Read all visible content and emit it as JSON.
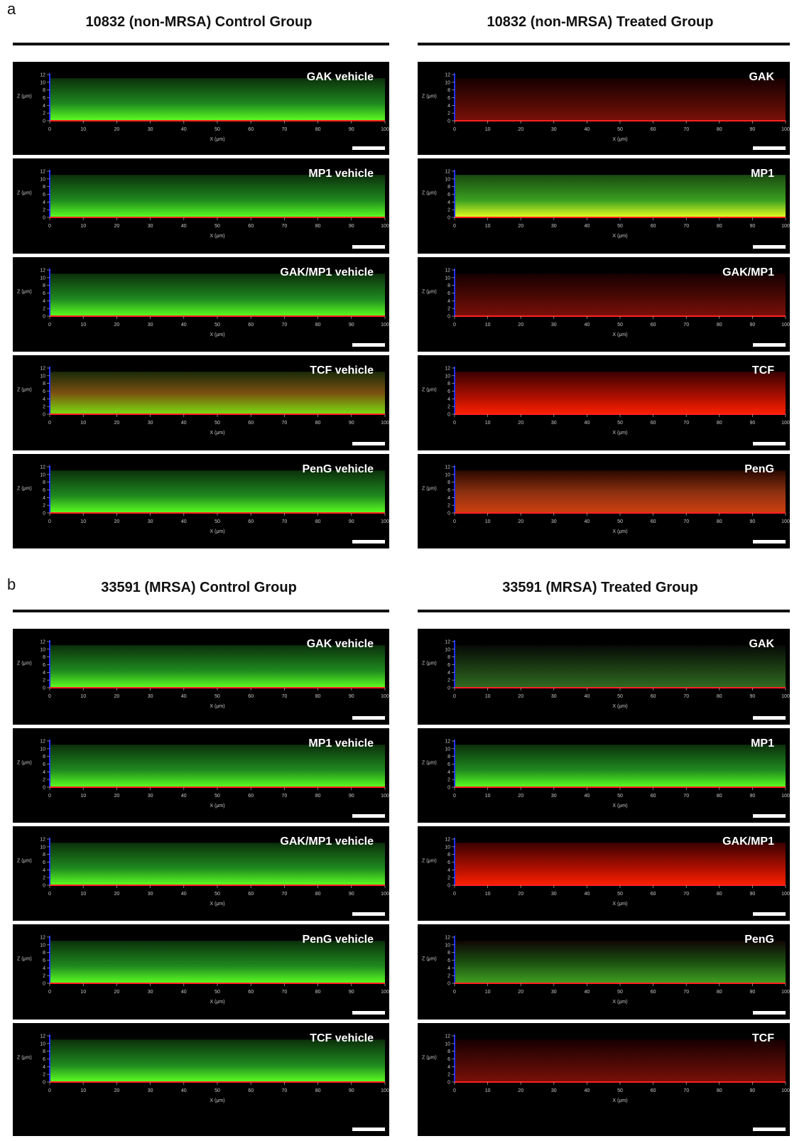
{
  "figure": {
    "sections": [
      {
        "label": "a",
        "groups": [
          {
            "title": "10832 (non-MRSA) Control Group",
            "panels": [
              "GAK vehicle",
              "MP1 vehicle",
              "GAK/MP1 vehicle",
              "TCF vehicle",
              "PenG vehicle"
            ]
          },
          {
            "title": "10832 (non-MRSA) Treated Group",
            "panels": [
              "GAK",
              "MP1",
              "GAK/MP1",
              "TCF",
              "PenG"
            ]
          }
        ]
      },
      {
        "label": "b",
        "groups": [
          {
            "title": "33591 (MRSA) Control Group",
            "panels": [
              "GAK vehicle",
              "MP1 vehicle",
              "GAK/MP1 vehicle",
              "PenG vehicle",
              "TCF vehicle"
            ]
          },
          {
            "title": "33591 (MRSA) Treated Group",
            "panels": [
              "GAK",
              "MP1",
              "GAK/MP1",
              "PenG",
              "TCF"
            ]
          }
        ]
      }
    ]
  },
  "axes": {
    "z_label": "Z (μm)",
    "x_label": "X (μm)",
    "z_ticks": [
      0,
      2,
      4,
      6,
      8,
      10,
      12
    ],
    "x_ticks": [
      0,
      10,
      20,
      30,
      40,
      50,
      60,
      70,
      80,
      90,
      100
    ]
  }
}
